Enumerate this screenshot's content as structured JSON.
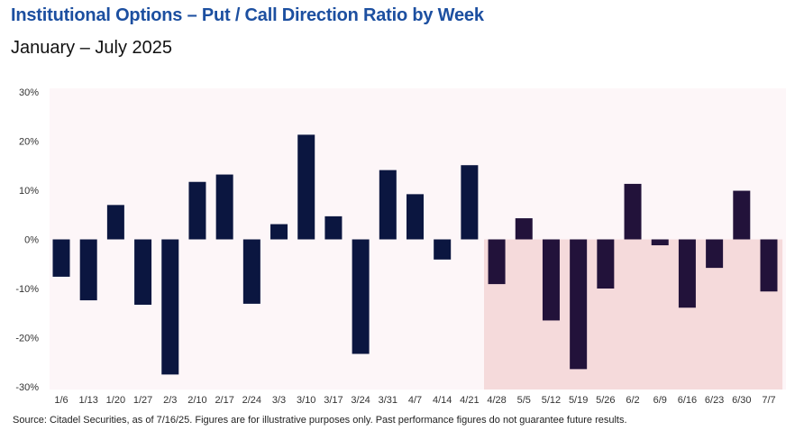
{
  "header": {
    "title": "Institutional Options – Put / Call Direction Ratio by Week",
    "subtitle": "January – July 2025"
  },
  "footer": {
    "source": "Source: Citadel Securities, as of 7/16/25. Figures are for illustrative purposes only. Past performance figures do not guarantee future results."
  },
  "colors": {
    "bar": "#0b1640",
    "bar_highlight": "#22123a",
    "highlight_band": "#f5dadb",
    "plot_bg": "#fdf6f8"
  },
  "chart_data": {
    "type": "bar",
    "title": "Institutional Options – Put / Call Direction Ratio by Week",
    "subtitle": "January – July 2025",
    "xlabel": "",
    "ylabel": "",
    "ylim": [
      -30,
      30
    ],
    "yticks": [
      30,
      20,
      10,
      0,
      -10,
      -20,
      -30
    ],
    "ytick_labels": [
      "30%",
      "20%",
      "10%",
      "0%",
      "-10%",
      "-20%",
      "-30%"
    ],
    "grid": false,
    "categories": [
      "1/6",
      "1/13",
      "1/20",
      "1/27",
      "2/3",
      "2/10",
      "2/17",
      "2/24",
      "3/3",
      "3/10",
      "3/17",
      "3/24",
      "3/31",
      "4/7",
      "4/14",
      "4/21",
      "4/28",
      "5/5",
      "5/12",
      "5/19",
      "5/26",
      "6/2",
      "6/9",
      "6/16",
      "6/23",
      "6/30",
      "7/7"
    ],
    "values": [
      -7.6,
      -12.4,
      7.0,
      -13.3,
      -27.5,
      11.7,
      13.2,
      -13.1,
      3.1,
      21.3,
      4.7,
      -23.3,
      14.1,
      9.2,
      -4.1,
      15.1,
      -9.1,
      4.3,
      -16.5,
      -26.4,
      -10.0,
      11.3,
      -1.2,
      -13.9,
      -5.8,
      9.9,
      -10.6
    ],
    "highlight_region": {
      "start_category": "4/28",
      "end_category": "7/7"
    }
  }
}
